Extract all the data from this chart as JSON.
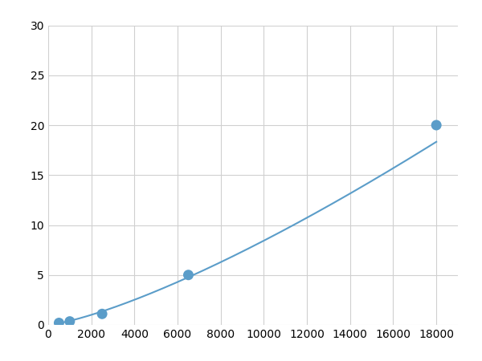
{
  "x_points": [
    500,
    1000,
    2500,
    6500,
    18000
  ],
  "y_points": [
    0.2,
    0.35,
    1.1,
    5.0,
    20.0
  ],
  "xlim": [
    0,
    19000
  ],
  "ylim": [
    0,
    30
  ],
  "xticks": [
    0,
    2000,
    4000,
    6000,
    8000,
    10000,
    12000,
    14000,
    16000,
    18000
  ],
  "yticks": [
    0,
    5,
    10,
    15,
    20,
    25,
    30
  ],
  "line_color": "#5b9dc9",
  "marker_color": "#5b9dc9",
  "marker_size": 5,
  "line_width": 1.5,
  "grid_color": "#d0d0d0",
  "background_color": "#ffffff",
  "tick_labelsize": 10,
  "figsize": [
    6.0,
    4.5
  ],
  "dpi": 100
}
